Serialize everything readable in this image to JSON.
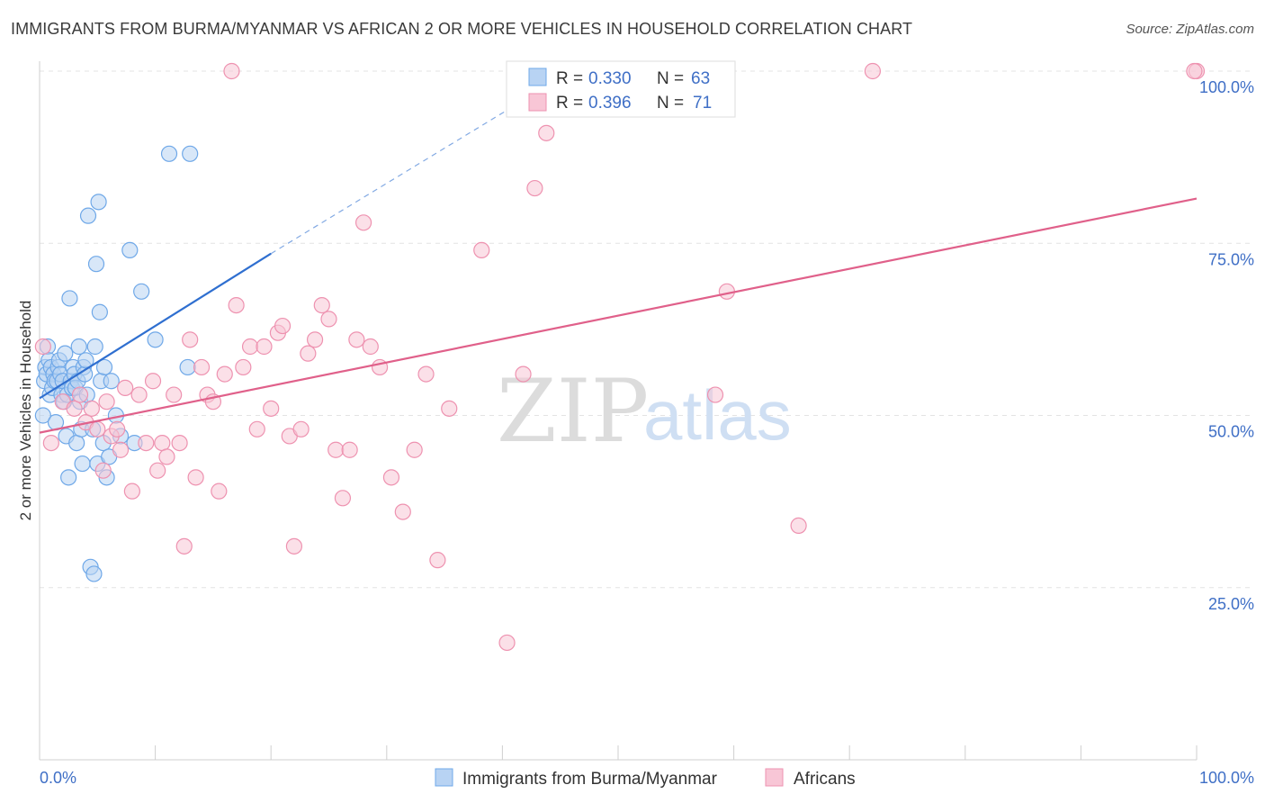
{
  "title": "IMMIGRANTS FROM BURMA/MYANMAR VS AFRICAN 2 OR MORE VEHICLES IN HOUSEHOLD CORRELATION CHART",
  "source": "Source: ZipAtlas.com",
  "watermark": {
    "zip": "ZIP",
    "atlas": "atlas"
  },
  "chart_data": {
    "type": "scatter",
    "title": "IMMIGRANTS FROM BURMA/MYANMAR VS AFRICAN 2 OR MORE VEHICLES IN HOUSEHOLD CORRELATION CHART",
    "xlabel": "",
    "ylabel": "2 or more Vehicles in Household",
    "xlim": [
      0,
      100
    ],
    "ylim": [
      0,
      102
    ],
    "x_tick_labels": {
      "left": "0.0%",
      "right": "100.0%"
    },
    "y_ticks": [
      {
        "value": 25,
        "label": "25.0%"
      },
      {
        "value": 50,
        "label": "50.0%"
      },
      {
        "value": 75,
        "label": "75.0%"
      },
      {
        "value": 100,
        "label": "100.0%"
      }
    ],
    "grid": true,
    "legend_stats": [
      {
        "r_label": "R =",
        "r": "0.330",
        "n_label": "N =",
        "n": "63"
      },
      {
        "r_label": "R =",
        "r": "0.396",
        "n_label": "N =",
        "n": "71"
      }
    ],
    "series": [
      {
        "name": "Immigrants from Burma/Myanmar",
        "color": "#6fa8e8",
        "fill": "#b8d3f3",
        "trend_color": "#2f6fd0",
        "trend": {
          "x0": 0,
          "y0": 52.5,
          "x1": 20,
          "y1": 73.5,
          "dash_x1": 44,
          "dash_y1": 98
        },
        "points": [
          [
            0.3,
            50
          ],
          [
            0.4,
            55
          ],
          [
            0.5,
            57
          ],
          [
            0.6,
            56
          ],
          [
            0.7,
            60
          ],
          [
            0.8,
            58
          ],
          [
            0.9,
            53
          ],
          [
            1.0,
            57
          ],
          [
            1.1,
            54
          ],
          [
            1.2,
            56
          ],
          [
            1.3,
            55
          ],
          [
            1.4,
            49
          ],
          [
            1.5,
            55
          ],
          [
            1.6,
            57
          ],
          [
            1.7,
            58
          ],
          [
            1.8,
            56
          ],
          [
            1.9,
            53
          ],
          [
            2.0,
            55
          ],
          [
            2.1,
            52
          ],
          [
            2.2,
            59
          ],
          [
            2.3,
            47
          ],
          [
            2.4,
            53
          ],
          [
            2.5,
            41
          ],
          [
            2.6,
            67
          ],
          [
            2.7,
            55
          ],
          [
            2.8,
            54
          ],
          [
            2.9,
            57
          ],
          [
            3.0,
            56
          ],
          [
            3.1,
            54
          ],
          [
            3.2,
            46
          ],
          [
            3.3,
            55
          ],
          [
            3.4,
            60
          ],
          [
            3.5,
            52
          ],
          [
            3.6,
            48
          ],
          [
            3.7,
            43
          ],
          [
            3.8,
            57
          ],
          [
            3.9,
            56
          ],
          [
            4.0,
            58
          ],
          [
            4.1,
            53
          ],
          [
            4.2,
            79
          ],
          [
            4.4,
            28
          ],
          [
            4.6,
            48
          ],
          [
            4.7,
            27
          ],
          [
            4.8,
            60
          ],
          [
            4.9,
            72
          ],
          [
            5.0,
            43
          ],
          [
            5.1,
            81
          ],
          [
            5.2,
            65
          ],
          [
            5.3,
            55
          ],
          [
            5.5,
            46
          ],
          [
            5.6,
            57
          ],
          [
            5.8,
            41
          ],
          [
            6.0,
            44
          ],
          [
            6.2,
            55
          ],
          [
            6.6,
            50
          ],
          [
            7.0,
            47
          ],
          [
            7.8,
            74
          ],
          [
            8.2,
            46
          ],
          [
            8.8,
            68
          ],
          [
            10.0,
            61
          ],
          [
            11.2,
            88
          ],
          [
            12.8,
            57
          ],
          [
            13.0,
            88
          ]
        ]
      },
      {
        "name": "Africans",
        "color": "#ee92b0",
        "fill": "#f8c6d6",
        "trend_color": "#e0608a",
        "trend": {
          "x0": 0,
          "y0": 47.5,
          "x1": 100,
          "y1": 81.5
        },
        "points": [
          [
            0.3,
            60
          ],
          [
            1.0,
            46
          ],
          [
            2.0,
            52
          ],
          [
            3.0,
            51
          ],
          [
            3.5,
            53
          ],
          [
            4.0,
            49
          ],
          [
            4.5,
            51
          ],
          [
            5.0,
            48
          ],
          [
            5.5,
            42
          ],
          [
            5.8,
            52
          ],
          [
            6.2,
            47
          ],
          [
            6.7,
            48
          ],
          [
            7.0,
            45
          ],
          [
            7.4,
            54
          ],
          [
            8.0,
            39
          ],
          [
            8.6,
            53
          ],
          [
            9.2,
            46
          ],
          [
            9.8,
            55
          ],
          [
            10.2,
            42
          ],
          [
            10.6,
            46
          ],
          [
            11.0,
            44
          ],
          [
            11.6,
            53
          ],
          [
            12.1,
            46
          ],
          [
            12.5,
            31
          ],
          [
            13.0,
            61
          ],
          [
            13.5,
            41
          ],
          [
            14.0,
            57
          ],
          [
            14.5,
            53
          ],
          [
            15.0,
            52
          ],
          [
            15.5,
            39
          ],
          [
            16.0,
            56
          ],
          [
            16.6,
            100
          ],
          [
            17.0,
            66
          ],
          [
            17.6,
            57
          ],
          [
            18.2,
            60
          ],
          [
            18.8,
            48
          ],
          [
            19.4,
            60
          ],
          [
            20.0,
            51
          ],
          [
            20.6,
            62
          ],
          [
            21.0,
            63
          ],
          [
            21.6,
            47
          ],
          [
            22.0,
            31
          ],
          [
            22.6,
            48
          ],
          [
            23.2,
            59
          ],
          [
            23.8,
            61
          ],
          [
            24.4,
            66
          ],
          [
            25.0,
            64
          ],
          [
            25.6,
            45
          ],
          [
            26.2,
            38
          ],
          [
            26.8,
            45
          ],
          [
            27.4,
            61
          ],
          [
            28.0,
            78
          ],
          [
            28.6,
            60
          ],
          [
            29.4,
            57
          ],
          [
            30.4,
            41
          ],
          [
            31.4,
            36
          ],
          [
            32.4,
            45
          ],
          [
            33.4,
            56
          ],
          [
            34.4,
            29
          ],
          [
            35.4,
            51
          ],
          [
            38.2,
            74
          ],
          [
            40.4,
            17
          ],
          [
            41.8,
            56
          ],
          [
            42.8,
            83
          ],
          [
            43.8,
            91
          ],
          [
            58.4,
            53
          ],
          [
            59.4,
            68
          ],
          [
            65.6,
            34
          ],
          [
            72.0,
            100
          ],
          [
            100,
            100
          ],
          [
            99.8,
            100
          ]
        ]
      }
    ]
  }
}
